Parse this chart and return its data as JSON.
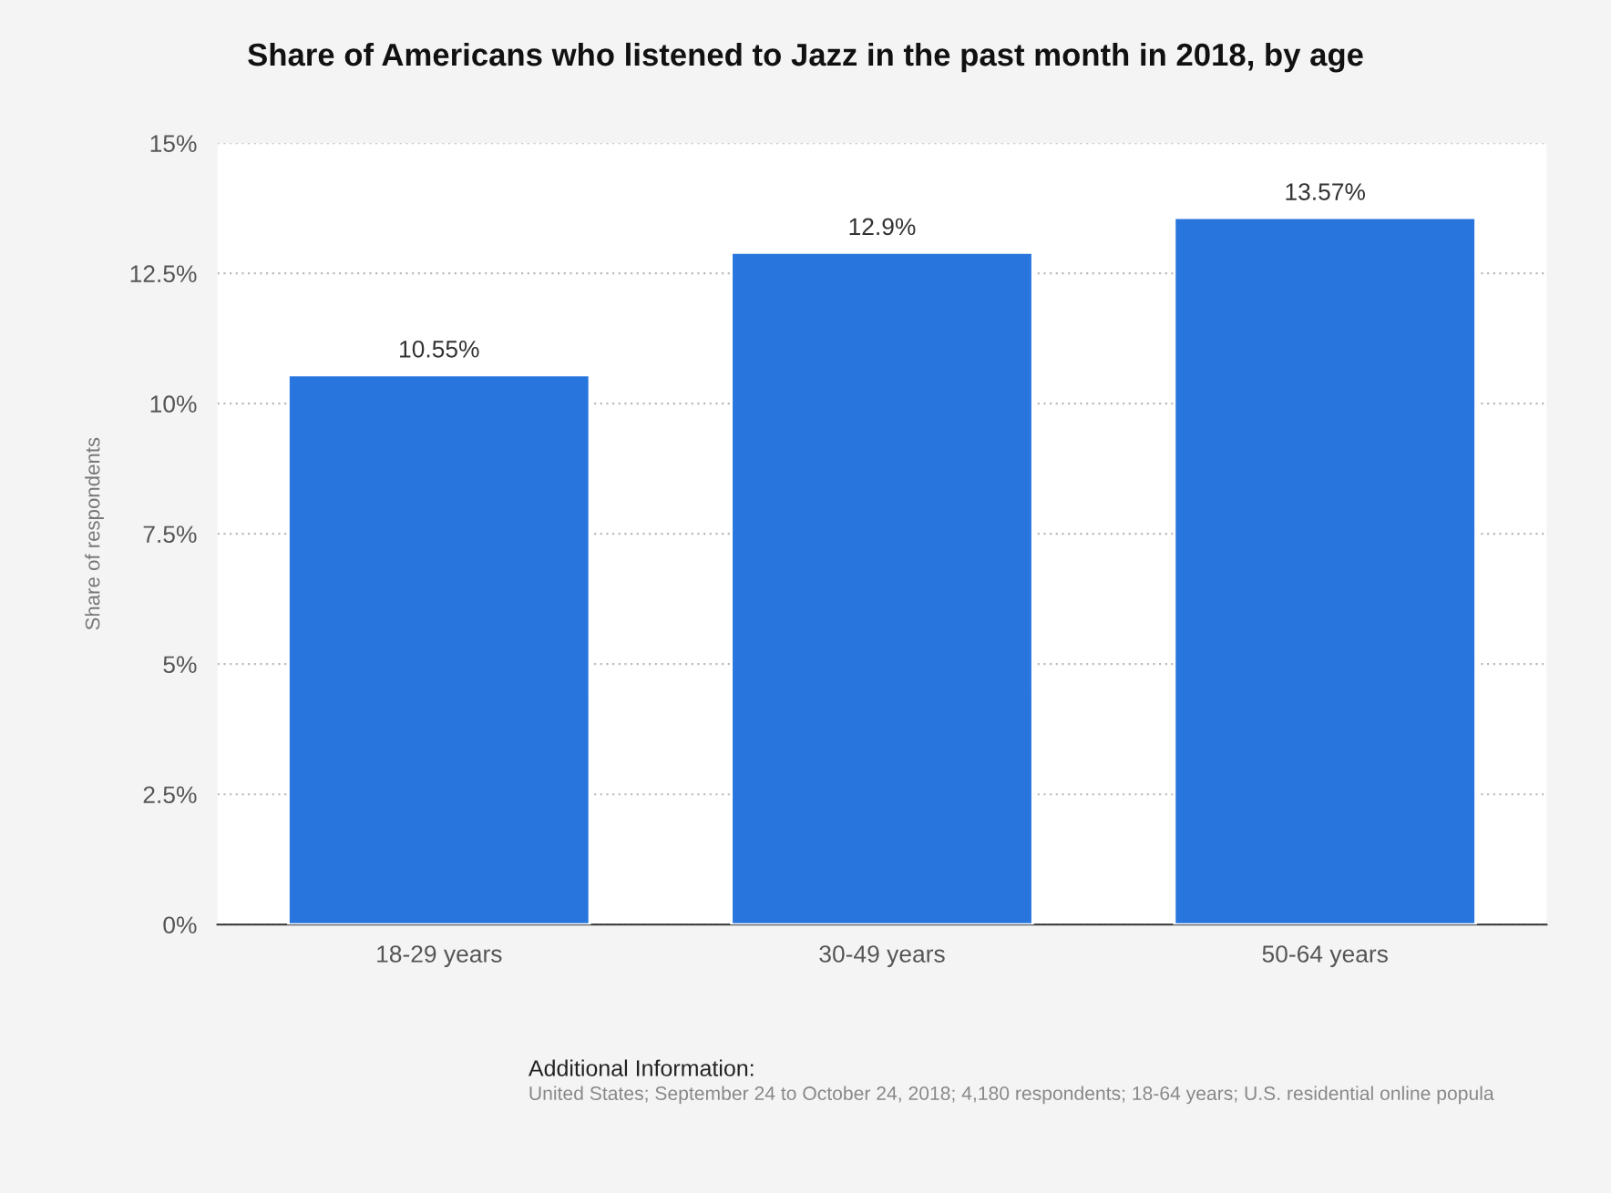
{
  "chart_data": {
    "type": "bar",
    "title": "Share of Americans who listened to Jazz in the past month in 2018, by age",
    "ylabel": "Share of respondents",
    "categories": [
      "18-29 years",
      "30-49 years",
      "50-64 years"
    ],
    "values": [
      10.55,
      12.9,
      13.57
    ],
    "value_labels": [
      "10.55%",
      "12.9%",
      "13.57%"
    ],
    "color": "#2876dd",
    "ylim": [
      0,
      15
    ],
    "yticks": [
      {
        "value": 0,
        "label": "0%"
      },
      {
        "value": 2.5,
        "label": "2.5%"
      },
      {
        "value": 5,
        "label": "5%"
      },
      {
        "value": 7.5,
        "label": "7.5%"
      },
      {
        "value": 10,
        "label": "10%"
      },
      {
        "value": 12.5,
        "label": "12.5%"
      },
      {
        "value": 15,
        "label": "15%"
      }
    ],
    "grid": "y",
    "legend": false,
    "annotations": [
      "Additional Information:",
      "United States; September 24 to October 24, 2018; 4,180 respondents; 18-64 years; U.S. residential online popula"
    ]
  }
}
